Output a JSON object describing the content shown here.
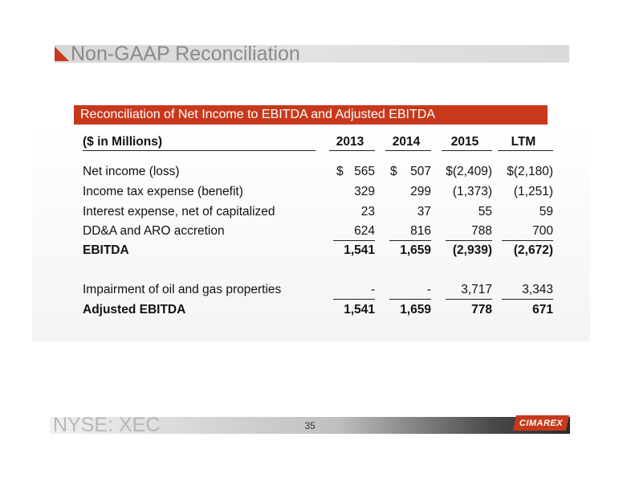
{
  "header": {
    "title": "Non-GAAP Reconciliation"
  },
  "table": {
    "banner": "Reconciliation of Net Income to EBITDA and Adjusted EBITDA",
    "unit_label": "($ in Millions)",
    "columns": [
      "2013",
      "2014",
      "2015",
      "LTM"
    ],
    "rows": [
      {
        "label": "Net income (loss)",
        "values": [
          "565",
          "507",
          "$(2,409)",
          "$(2,180)"
        ],
        "dollar_prefix": [
          "$",
          "$"
        ]
      },
      {
        "label": "Income tax expense (benefit)",
        "values": [
          "329",
          "299",
          "(1,373)",
          "(1,251)"
        ]
      },
      {
        "label": "Interest expense, net of capitalized",
        "values": [
          "23",
          "37",
          "55",
          "59"
        ]
      },
      {
        "label": "DD&A and ARO accretion",
        "values": [
          "624",
          "816",
          "788",
          "700"
        ]
      },
      {
        "label": "EBITDA",
        "values": [
          "1,541",
          "1,659",
          "(2,939)",
          "(2,672)"
        ]
      },
      {
        "label": "Impairment of oil and gas properties",
        "values": [
          "-",
          "-",
          "3,717",
          "3,343"
        ]
      },
      {
        "label": "Adjusted EBITDA",
        "values": [
          "1,541",
          "1,659",
          "778",
          "671"
        ]
      }
    ]
  },
  "footer": {
    "ticker": "NYSE: XEC",
    "page_number": "35",
    "logo_text": "CIMAREX"
  },
  "colors": {
    "accent": "#c8391c",
    "title_gray": "#8a8a8a"
  }
}
